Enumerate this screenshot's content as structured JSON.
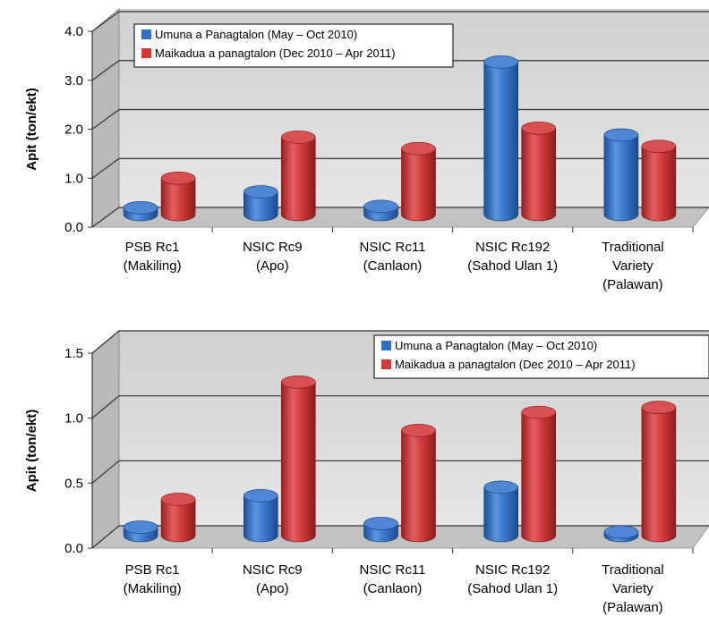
{
  "colors": {
    "series1": "#2f6fc4",
    "series2": "#d23a3a",
    "wall": "#d4d4d4",
    "floor": "#bdbdbd"
  },
  "chart_data": [
    {
      "type": "bar",
      "ylabel": "Apit (ton/ekt)",
      "ylim": [
        0,
        4
      ],
      "yticks": [
        "0.0",
        "1.0",
        "2.0",
        "3.0",
        "4.0"
      ],
      "categories": [
        [
          "PSB Rc1",
          "(Makiling)"
        ],
        [
          "NSIC Rc9",
          "(Apo)"
        ],
        [
          "NSIC Rc11",
          "(Canlaon)"
        ],
        [
          "NSIC Rc192",
          "(Sahod Ulan 1)"
        ],
        [
          "Traditional",
          "Variety",
          "(Palawan)"
        ]
      ],
      "series": [
        {
          "name": "Umuna a Panagtalon (May – Oct 2010)",
          "values": [
            0.15,
            0.5,
            0.18,
            3.35,
            1.75
          ]
        },
        {
          "name": "Maikadua a panagtalon (Dec 2010 – Apr 2011)",
          "values": [
            0.8,
            1.7,
            1.45,
            1.9,
            1.5
          ]
        }
      ],
      "legend": "top-left",
      "grid": true
    },
    {
      "type": "bar",
      "ylabel": "Apit (ton/ekt)",
      "ylim": [
        0,
        1.5
      ],
      "yticks": [
        "0.0",
        "0.5",
        "1.0",
        "1.5"
      ],
      "categories": [
        [
          "PSB  Rc1",
          "(Makiling)"
        ],
        [
          "NSIC  Rc9",
          "(Apo)"
        ],
        [
          "NSIC  Rc11",
          "(Canlaon)"
        ],
        [
          "NSIC  Rc192",
          "(Sahod Ulan 1)"
        ],
        [
          "Traditional",
          "Variety",
          "(Palawan)"
        ]
      ],
      "series": [
        {
          "name": "Umuna a Panagtalon (May – Oct 2010)",
          "values": [
            0.07,
            0.33,
            0.1,
            0.4,
            0.03
          ]
        },
        {
          "name": "Maikadua a panagtalon (Dec 2010 – Apr 2011)",
          "values": [
            0.3,
            1.27,
            0.87,
            1.02,
            1.06
          ]
        }
      ],
      "legend": "top-right",
      "grid": true
    }
  ]
}
